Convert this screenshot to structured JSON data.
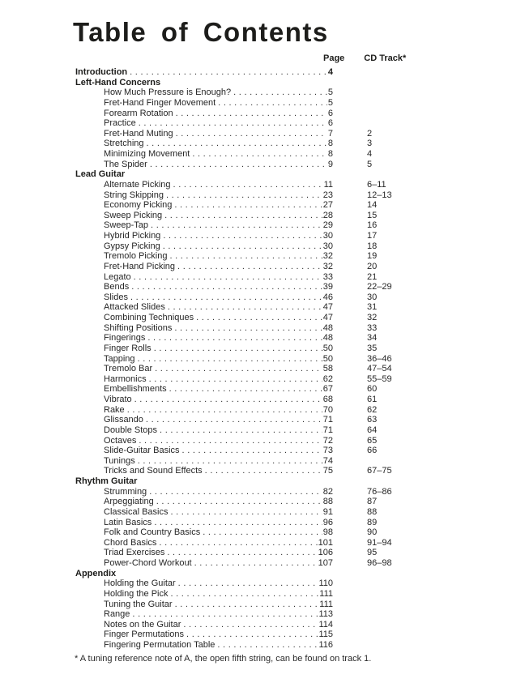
{
  "toc": {
    "title": "Table of Contents",
    "columns": {
      "page": "Page",
      "cd_track": "CD Track*"
    },
    "footnote": "* A tuning reference note of A, the open fifth string, can be found on track 1.",
    "entries": [
      {
        "label": "Introduction",
        "level": 0,
        "bold": true,
        "page": "4",
        "track": ""
      },
      {
        "label": "Left-Hand Concerns",
        "level": 0,
        "bold": true,
        "page": "",
        "track": ""
      },
      {
        "label": "How Much Pressure is Enough?",
        "level": 1,
        "bold": false,
        "page": "5",
        "track": ""
      },
      {
        "label": "Fret-Hand Finger Movement",
        "level": 1,
        "bold": false,
        "page": "5",
        "track": ""
      },
      {
        "label": "Forearm Rotation",
        "level": 1,
        "bold": false,
        "page": "6",
        "track": ""
      },
      {
        "label": "Practice",
        "level": 1,
        "bold": false,
        "page": "6",
        "track": ""
      },
      {
        "label": "Fret-Hand Muting",
        "level": 1,
        "bold": false,
        "page": "7",
        "track": "2"
      },
      {
        "label": "Stretching",
        "level": 1,
        "bold": false,
        "page": "8",
        "track": "3"
      },
      {
        "label": "Minimizing Movement",
        "level": 1,
        "bold": false,
        "page": "8",
        "track": "4"
      },
      {
        "label": "The Spider",
        "level": 1,
        "bold": false,
        "page": "9",
        "track": "5"
      },
      {
        "label": "Lead Guitar",
        "level": 0,
        "bold": true,
        "page": "",
        "track": ""
      },
      {
        "label": "Alternate Picking",
        "level": 1,
        "bold": false,
        "page": "11",
        "track": "6–11"
      },
      {
        "label": "String Skipping",
        "level": 1,
        "bold": false,
        "page": "23",
        "track": "12–13"
      },
      {
        "label": "Economy Picking",
        "level": 1,
        "bold": false,
        "page": "27",
        "track": "14"
      },
      {
        "label": "Sweep Picking",
        "level": 1,
        "bold": false,
        "page": "28",
        "track": "15"
      },
      {
        "label": "Sweep-Tap",
        "level": 1,
        "bold": false,
        "page": "29",
        "track": "16"
      },
      {
        "label": "Hybrid Picking",
        "level": 1,
        "bold": false,
        "page": "30",
        "track": "17"
      },
      {
        "label": "Gypsy Picking",
        "level": 1,
        "bold": false,
        "page": "30",
        "track": "18"
      },
      {
        "label": "Tremolo Picking",
        "level": 1,
        "bold": false,
        "page": "32",
        "track": "19"
      },
      {
        "label": "Fret-Hand Picking",
        "level": 1,
        "bold": false,
        "page": "32",
        "track": "20"
      },
      {
        "label": "Legato",
        "level": 1,
        "bold": false,
        "page": "33",
        "track": "21"
      },
      {
        "label": "Bends",
        "level": 1,
        "bold": false,
        "page": "39",
        "track": "22–29"
      },
      {
        "label": "Slides",
        "level": 1,
        "bold": false,
        "page": "46",
        "track": "30"
      },
      {
        "label": "Attacked Slides",
        "level": 1,
        "bold": false,
        "page": "47",
        "track": "31"
      },
      {
        "label": "Combining Techniques",
        "level": 1,
        "bold": false,
        "page": "47",
        "track": "32"
      },
      {
        "label": "Shifting Positions",
        "level": 1,
        "bold": false,
        "page": "48",
        "track": "33"
      },
      {
        "label": "Fingerings",
        "level": 1,
        "bold": false,
        "page": "48",
        "track": "34"
      },
      {
        "label": "Finger Rolls",
        "level": 1,
        "bold": false,
        "page": "50",
        "track": "35"
      },
      {
        "label": "Tapping",
        "level": 1,
        "bold": false,
        "page": "50",
        "track": "36–46"
      },
      {
        "label": "Tremolo Bar",
        "level": 1,
        "bold": false,
        "page": "58",
        "track": "47–54"
      },
      {
        "label": "Harmonics",
        "level": 1,
        "bold": false,
        "page": "62",
        "track": "55–59"
      },
      {
        "label": "Embellishments",
        "level": 1,
        "bold": false,
        "page": "67",
        "track": "60"
      },
      {
        "label": "Vibrato",
        "level": 1,
        "bold": false,
        "page": "68",
        "track": "61"
      },
      {
        "label": "Rake",
        "level": 1,
        "bold": false,
        "page": "70",
        "track": "62"
      },
      {
        "label": "Glissando",
        "level": 1,
        "bold": false,
        "page": "71",
        "track": "63"
      },
      {
        "label": "Double Stops",
        "level": 1,
        "bold": false,
        "page": "71",
        "track": "64"
      },
      {
        "label": "Octaves",
        "level": 1,
        "bold": false,
        "page": "72",
        "track": "65"
      },
      {
        "label": "Slide-Guitar Basics",
        "level": 1,
        "bold": false,
        "page": "73",
        "track": "66"
      },
      {
        "label": "Tunings",
        "level": 1,
        "bold": false,
        "page": "74",
        "track": ""
      },
      {
        "label": "Tricks and Sound Effects",
        "level": 1,
        "bold": false,
        "page": "75",
        "track": "67–75"
      },
      {
        "label": "Rhythm Guitar",
        "level": 0,
        "bold": true,
        "page": "",
        "track": ""
      },
      {
        "label": "Strumming",
        "level": 1,
        "bold": false,
        "page": "82",
        "track": "76–86"
      },
      {
        "label": "Arpeggiating",
        "level": 1,
        "bold": false,
        "page": "88",
        "track": "87"
      },
      {
        "label": "Classical Basics",
        "level": 1,
        "bold": false,
        "page": "91",
        "track": "88"
      },
      {
        "label": "Latin Basics",
        "level": 1,
        "bold": false,
        "page": "96",
        "track": "89"
      },
      {
        "label": "Folk and Country Basics",
        "level": 1,
        "bold": false,
        "page": "98",
        "track": "90"
      },
      {
        "label": "Chord Basics",
        "level": 1,
        "bold": false,
        "page": "101",
        "track": "91–94"
      },
      {
        "label": "Triad Exercises",
        "level": 1,
        "bold": false,
        "page": "106",
        "track": "95"
      },
      {
        "label": "Power-Chord Workout",
        "level": 1,
        "bold": false,
        "page": "107",
        "track": "96–98"
      },
      {
        "label": "Appendix",
        "level": 0,
        "bold": true,
        "page": "",
        "track": ""
      },
      {
        "label": "Holding the Guitar",
        "level": 1,
        "bold": false,
        "page": "110",
        "track": ""
      },
      {
        "label": "Holding the Pick",
        "level": 1,
        "bold": false,
        "page": "111",
        "track": ""
      },
      {
        "label": "Tuning the Guitar",
        "level": 1,
        "bold": false,
        "page": "111",
        "track": ""
      },
      {
        "label": "Range",
        "level": 1,
        "bold": false,
        "page": "113",
        "track": ""
      },
      {
        "label": "Notes on the Guitar",
        "level": 1,
        "bold": false,
        "page": "114",
        "track": ""
      },
      {
        "label": "Finger Permutations",
        "level": 1,
        "bold": false,
        "page": "115",
        "track": ""
      },
      {
        "label": "Fingering Permutation Table",
        "level": 1,
        "bold": false,
        "page": "116",
        "track": ""
      }
    ]
  }
}
